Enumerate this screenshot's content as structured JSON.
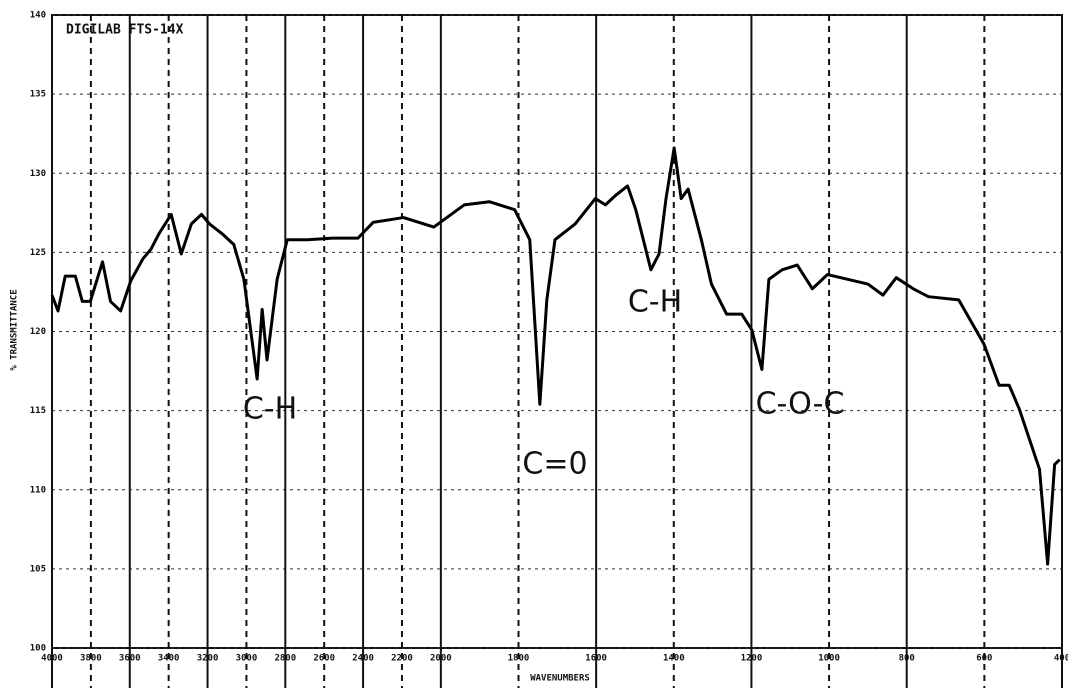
{
  "chart_data": {
    "type": "line",
    "title": "DIGILAB FTS-14X",
    "x_label": "WAVENUMBERS",
    "y_label": "% TRANSMITTANCE",
    "annotations": [
      "C-H",
      "C=0",
      "C-H",
      "C-O-C"
    ],
    "xlim": [
      4000,
      400
    ],
    "x_scale_break": 2000,
    "xticks": [
      4000,
      3800,
      3600,
      3400,
      3200,
      3000,
      2800,
      2600,
      2400,
      2200,
      2000,
      1800,
      1600,
      1400,
      1200,
      1000,
      800,
      600,
      400
    ],
    "ylim": [
      100,
      140
    ],
    "yticks": [
      100,
      105,
      110,
      115,
      120,
      125,
      130,
      135,
      140
    ],
    "grid": true,
    "series": [
      {
        "name": "spectrum",
        "color": "#000000",
        "x": [
          4000,
          3969,
          3932,
          3880,
          3844,
          3803,
          3740,
          3699,
          3647,
          3595,
          3532,
          3491,
          3449,
          3387,
          3335,
          3283,
          3231,
          3190,
          3127,
          3065,
          3013,
          2945,
          2919,
          2894,
          2842,
          2790,
          2686,
          2556,
          2426,
          2348,
          2192,
          2036,
          1940,
          1875,
          1810,
          1771,
          1745,
          1727,
          1706,
          1654,
          1602,
          1576,
          1550,
          1519,
          1498,
          1459,
          1438,
          1420,
          1399,
          1381,
          1363,
          1329,
          1303,
          1264,
          1225,
          1199,
          1173,
          1155,
          1121,
          1082,
          1043,
          1004,
          952,
          900,
          861,
          827,
          783,
          744,
          666,
          601,
          562,
          536,
          510,
          484,
          458,
          437,
          419,
          406
        ],
        "values": [
          122.3,
          121.3,
          123.5,
          123.5,
          121.9,
          121.9,
          124.4,
          121.9,
          121.3,
          123.2,
          124.6,
          125.2,
          126.2,
          127.4,
          124.9,
          126.8,
          127.4,
          126.8,
          126.2,
          125.5,
          123.3,
          117,
          121.4,
          118.2,
          123.3,
          125.8,
          125.8,
          125.9,
          125.9,
          126.9,
          127.2,
          126.6,
          128,
          128.2,
          127.7,
          125.8,
          115.4,
          122,
          125.8,
          126.8,
          128.4,
          128,
          128.6,
          129.2,
          127.7,
          123.9,
          124.9,
          128.4,
          131.6,
          128.4,
          129,
          125.8,
          123,
          121.1,
          121.1,
          120.1,
          117.6,
          123.3,
          123.9,
          124.2,
          122.7,
          123.6,
          123.3,
          123,
          122.3,
          123.4,
          122.7,
          122.2,
          122,
          119.2,
          116.6,
          116.6,
          115.1,
          113.2,
          111.3,
          105.3,
          111.6,
          111.9
        ]
      }
    ]
  }
}
